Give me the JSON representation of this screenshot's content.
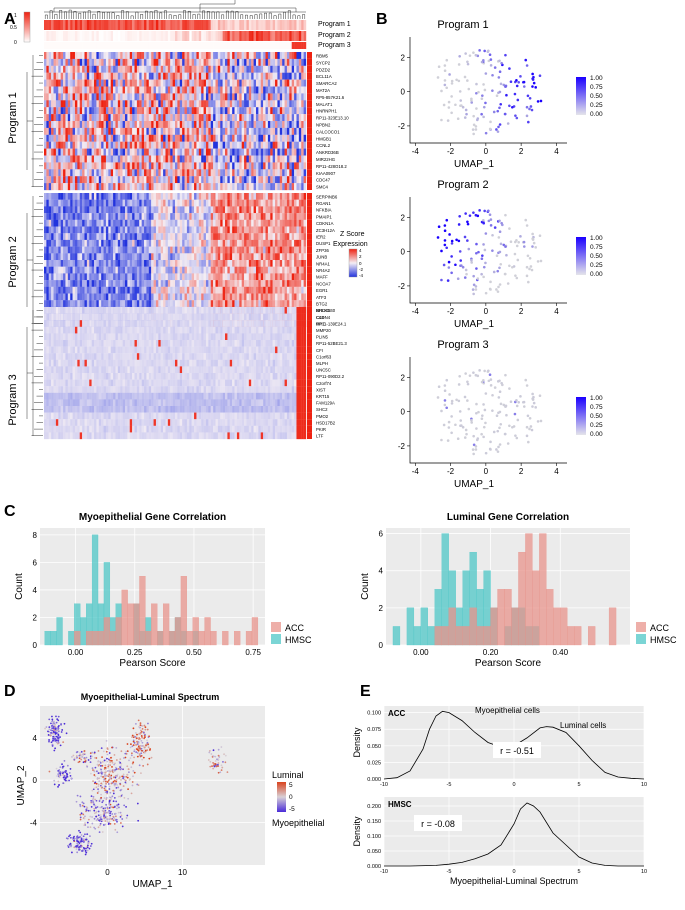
{
  "figure": {
    "panel_labels": [
      "A",
      "B",
      "C",
      "D",
      "E"
    ]
  },
  "colors": {
    "heat_high": "#ee2211",
    "heat_mid": "#f4eef4",
    "heat_low": "#2233dd",
    "panel_bg": "#ebebeb",
    "acc": "#e8948c",
    "hmsc": "#4fc7c7",
    "umap_low": "#d0d0d8",
    "umap_high": "#1a00ff",
    "luminal": "#d9431e",
    "myoepithelial": "#4a2bd8"
  },
  "heatmap": {
    "programs": [
      {
        "name": "Program 1",
        "genes": [
          "RBM5",
          "SYCP2",
          "PDZD2",
          "BCL11A",
          "SMARCA2",
          "MAT2A",
          "RP5-857K21.6",
          "MALAT1",
          "HNRNPH1",
          "RP11-323E13.10",
          "NPBN2",
          "CALCOCO1",
          "HMGB1",
          "CCNL2",
          "ANKRD36B",
          "MIR22HG",
          "RP11-428O18.2",
          "KIAA0907",
          "CDC47",
          "SMC4"
        ]
      },
      {
        "name": "Program 2",
        "genes": [
          "SERPINB6",
          "RGAN1",
          "NFKBIA",
          "PMAIP1",
          "CDKN1A",
          "ZC3H12A",
          "IER2",
          "DUSP1",
          "ZFP36",
          "JUNB",
          "NR4A1",
          "NR4A2",
          "MAFF",
          "NCOA7",
          "EGR1",
          "ATF3",
          "BTG2",
          "BHLHE40",
          "CLDN4",
          "MYC"
        ]
      },
      {
        "name": "Program 3",
        "genes": [
          "NRDC2",
          "C4B",
          "RP11-139E24.1",
          "MMP20",
          "PLIN5",
          "RP11-52BE21.3",
          "CFI",
          "C1orf63",
          "MLPH",
          "UNC5C",
          "RP11-090D2.2",
          "C2orf74",
          "XIST",
          "KRT15",
          "FAM129A",
          "SHC2",
          "PMO2",
          "HSD17B2",
          "PKIR",
          "LTF"
        ]
      }
    ],
    "top_legend_ticks": [
      "1",
      "0.5",
      "0"
    ],
    "zscore_title": "Z Score",
    "zscore_subtitle": "Expression",
    "zscore_ticks": [
      "4",
      "2",
      "0",
      "-2",
      "-4"
    ]
  },
  "umap_programs": {
    "x_label": "UMAP_1",
    "x_ticks": [
      "-4",
      "-2",
      "0",
      "2",
      "4"
    ],
    "y_ticks": [
      "2",
      "0",
      "-2"
    ],
    "legend_ticks": [
      "1.00",
      "0.75",
      "0.50",
      "0.25",
      "0.00"
    ],
    "plots": [
      {
        "title": "Program 1"
      },
      {
        "title": "Program 2"
      },
      {
        "title": "Program 3"
      }
    ]
  },
  "histograms": [
    {
      "title": "Myoepithelial Gene Correlation",
      "x_label": "Pearson Score",
      "y_label": "Count",
      "x_ticks": [
        "0.00",
        "0.25",
        "0.50",
        "0.75"
      ],
      "y_ticks": [
        "0",
        "2",
        "4",
        "6",
        "8"
      ],
      "legend": [
        "ACC",
        "HMSC"
      ]
    },
    {
      "title": "Luminal Gene Correlation",
      "x_label": "Pearson Score",
      "y_label": "Count",
      "x_ticks": [
        "0.00",
        "0.20",
        "0.40"
      ],
      "y_ticks": [
        "0",
        "2",
        "4",
        "6"
      ],
      "legend": [
        "ACC",
        "HMSC"
      ]
    }
  ],
  "spectrum_umap": {
    "title": "Myoepithelial-Luminal Spectrum",
    "x_label": "UMAP_1",
    "y_label": "UMAP_2",
    "x_ticks": [
      "0",
      "10"
    ],
    "y_ticks": [
      "4",
      "0",
      "-4"
    ],
    "legend_top": "Luminal",
    "legend_bottom": "Myoepithelial",
    "legend_ticks": [
      "5",
      "0",
      "-5"
    ]
  },
  "chart_data": [
    {
      "type": "bar",
      "title": "Myoepithelial Gene Correlation",
      "xlabel": "Pearson Score",
      "ylabel": "Count",
      "xlim": [
        -0.15,
        0.8
      ],
      "ylim": [
        0,
        8.5
      ],
      "bin_starts": [
        -0.13,
        -0.105,
        -0.08,
        -0.055,
        -0.03,
        -0.005,
        0.02,
        0.045,
        0.07,
        0.095,
        0.12,
        0.145,
        0.17,
        0.195,
        0.22,
        0.245,
        0.27,
        0.295,
        0.32,
        0.345,
        0.37,
        0.395,
        0.42,
        0.445,
        0.47,
        0.495,
        0.52,
        0.545,
        0.57,
        0.595,
        0.62,
        0.645,
        0.67,
        0.695,
        0.72,
        0.745
      ],
      "bin_width": 0.025,
      "series": [
        {
          "name": "HMSC",
          "values": [
            1,
            1,
            2,
            0,
            1,
            3,
            2,
            3,
            8,
            3,
            6,
            2,
            3,
            0,
            0,
            3,
            1,
            2,
            0,
            1,
            0,
            1,
            2,
            1,
            0,
            1,
            0,
            0,
            0,
            0,
            0,
            0,
            0,
            0,
            0,
            0
          ]
        },
        {
          "name": "ACC",
          "values": [
            0,
            0,
            0,
            0,
            0,
            1,
            0,
            1,
            1,
            1,
            2,
            1,
            2,
            4,
            3,
            3,
            5,
            1,
            3,
            1,
            3,
            1,
            2,
            5,
            1,
            2,
            1,
            2,
            1,
            0,
            1,
            0,
            1,
            0,
            1,
            2
          ]
        }
      ]
    },
    {
      "type": "bar",
      "title": "Luminal Gene Correlation",
      "xlabel": "Pearson Score",
      "ylabel": "Count",
      "xlim": [
        -0.1,
        0.6
      ],
      "ylim": [
        0,
        6.3
      ],
      "bin_starts": [
        -0.08,
        -0.06,
        -0.04,
        -0.02,
        0.0,
        0.02,
        0.04,
        0.06,
        0.08,
        0.1,
        0.12,
        0.14,
        0.16,
        0.18,
        0.2,
        0.22,
        0.24,
        0.26,
        0.28,
        0.3,
        0.32,
        0.34,
        0.36,
        0.38,
        0.4,
        0.42,
        0.44,
        0.46,
        0.48,
        0.5,
        0.52,
        0.54
      ],
      "bin_width": 0.02,
      "series": [
        {
          "name": "HMSC",
          "values": [
            1,
            0,
            2,
            1,
            2,
            1,
            3,
            6,
            4,
            2,
            4,
            5,
            3,
            4,
            2,
            0,
            1,
            2,
            2,
            1,
            1,
            0,
            0,
            0,
            0,
            0,
            0,
            0,
            0,
            0,
            0,
            0
          ]
        },
        {
          "name": "ACC",
          "values": [
            0,
            0,
            0,
            0,
            0,
            0,
            1,
            1,
            2,
            1,
            1,
            2,
            1,
            1,
            2,
            3,
            3,
            2,
            5,
            6,
            4,
            6,
            3,
            2,
            2,
            1,
            1,
            0,
            1,
            0,
            0,
            2
          ]
        }
      ]
    },
    {
      "type": "line",
      "title": "ACC",
      "xlabel": "Myoepithelial-Luminal Spectrum",
      "ylabel": "Density",
      "xlim": [
        -10,
        10
      ],
      "ylim": [
        0,
        0.11
      ],
      "x_ticks": [
        -10,
        -5,
        0,
        5,
        10
      ],
      "y_ticks": [
        0.0,
        0.025,
        0.05,
        0.075,
        0.1
      ],
      "x": [
        -10,
        -9,
        -8,
        -7,
        -6.5,
        -6,
        -5.5,
        -5,
        -4,
        -3,
        -2,
        -1,
        0,
        1,
        2,
        2.5,
        3,
        4,
        5,
        6,
        7,
        8,
        9,
        10
      ],
      "values": [
        0.0,
        0.002,
        0.012,
        0.045,
        0.075,
        0.095,
        0.102,
        0.1,
        0.088,
        0.07,
        0.055,
        0.048,
        0.05,
        0.062,
        0.077,
        0.079,
        0.078,
        0.07,
        0.05,
        0.028,
        0.01,
        0.003,
        0.001,
        0.0
      ],
      "annotations": [
        "Myoepithelial cells",
        "Luminal cells",
        "r = -0.51"
      ]
    },
    {
      "type": "line",
      "title": "HMSC",
      "xlabel": "Myoepithelial-Luminal Spectrum",
      "ylabel": "Density",
      "xlim": [
        -10,
        10
      ],
      "ylim": [
        0,
        0.23
      ],
      "x_ticks": [
        -10,
        -5,
        0,
        5,
        10
      ],
      "y_ticks": [
        0.0,
        0.05,
        0.1,
        0.15,
        0.2
      ],
      "x": [
        -10,
        -8,
        -6,
        -5,
        -4,
        -3,
        -2,
        -1,
        0,
        0.5,
        1,
        1.5,
        2,
        3,
        4,
        5,
        6,
        7,
        8,
        10
      ],
      "values": [
        0.0,
        0.0,
        0.002,
        0.006,
        0.012,
        0.024,
        0.04,
        0.07,
        0.14,
        0.19,
        0.21,
        0.2,
        0.18,
        0.11,
        0.07,
        0.03,
        0.01,
        0.002,
        0.0,
        0.0
      ],
      "annotations": [
        "r = -0.08"
      ]
    }
  ]
}
